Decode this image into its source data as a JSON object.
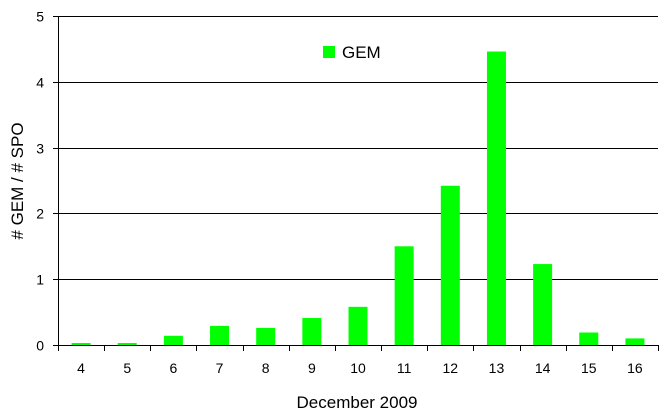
{
  "chart_data": {
    "type": "bar",
    "categories": [
      "4",
      "5",
      "6",
      "7",
      "8",
      "9",
      "10",
      "11",
      "12",
      "13",
      "14",
      "15",
      "16"
    ],
    "series": [
      {
        "name": "GEM",
        "color": "#00ff00",
        "values": [
          0.03,
          0.03,
          0.14,
          0.29,
          0.26,
          0.41,
          0.58,
          1.5,
          2.42,
          4.46,
          1.23,
          0.19,
          0.1
        ]
      }
    ],
    "xlabel": "December 2009",
    "ylabel": "# GEM / # SPO",
    "ylim": [
      0,
      5
    ],
    "yticks": [
      0,
      1,
      2,
      3,
      4,
      5
    ],
    "grid": true,
    "legend_position": "top-center"
  }
}
